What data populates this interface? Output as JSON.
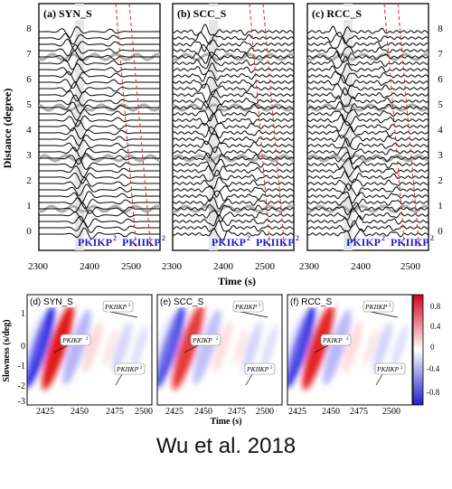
{
  "caption": "Wu et al. 2018",
  "top": {
    "panels": [
      {
        "label": "(a) SYN_S"
      },
      {
        "label": "(b) SCC_S"
      },
      {
        "label": "(c) RCC_S"
      }
    ],
    "phase_labels": [
      "PKIKP",
      "PKIIKP"
    ],
    "superscript": "2",
    "ylabel": "Distance (degree)",
    "xlabel": "Time (s)",
    "x_ticks": [
      "2300",
      "2400",
      "2500"
    ],
    "y_ticks": [
      "0",
      "1",
      "2",
      "3",
      "4",
      "5",
      "6",
      "7",
      "8"
    ]
  },
  "bottom": {
    "panels": [
      {
        "label": "(d) SYN_S"
      },
      {
        "label": "(e) SCC_S"
      },
      {
        "label": "(f) RCC_S"
      }
    ],
    "annotations": [
      "PKIIKP",
      "PKIKP",
      "PKIIKP"
    ],
    "superscript": "2",
    "ylabel": "Slowness (s/deg)",
    "xlabel": "Time (s)",
    "x_ticks": [
      "2425",
      "2450",
      "2475",
      "2500"
    ],
    "y_ticks": [
      "1",
      "0",
      "-1",
      "-2",
      "-3"
    ],
    "colorbar_ticks": [
      "0.8",
      "0.4",
      "0",
      "-0.4",
      "-0.8"
    ]
  },
  "chart_data": [
    {
      "type": "line",
      "title": "(a) SYN_S / (b) SCC_S / (c) RCC_S",
      "xlabel": "Time (s)",
      "ylabel": "Distance (degree)",
      "xlim": [
        2300,
        2550
      ],
      "ylim": [
        -0.5,
        8.5
      ],
      "series_per_panel": 33,
      "trace_spacing_deg": 0.25,
      "phase_markers": [
        "PKIKP",
        "PKIIKP"
      ]
    },
    {
      "type": "heatmap",
      "title": "(d) SYN_S / (e) SCC_S / (f) RCC_S",
      "xlabel": "Time (s)",
      "ylabel": "Slowness (s/deg)",
      "ylim": [
        -3,
        1
      ],
      "color_range": [
        -0.9,
        0.9
      ],
      "colorbar_ticks": [
        0.8,
        0.4,
        0,
        -0.4,
        -0.8
      ]
    }
  ]
}
